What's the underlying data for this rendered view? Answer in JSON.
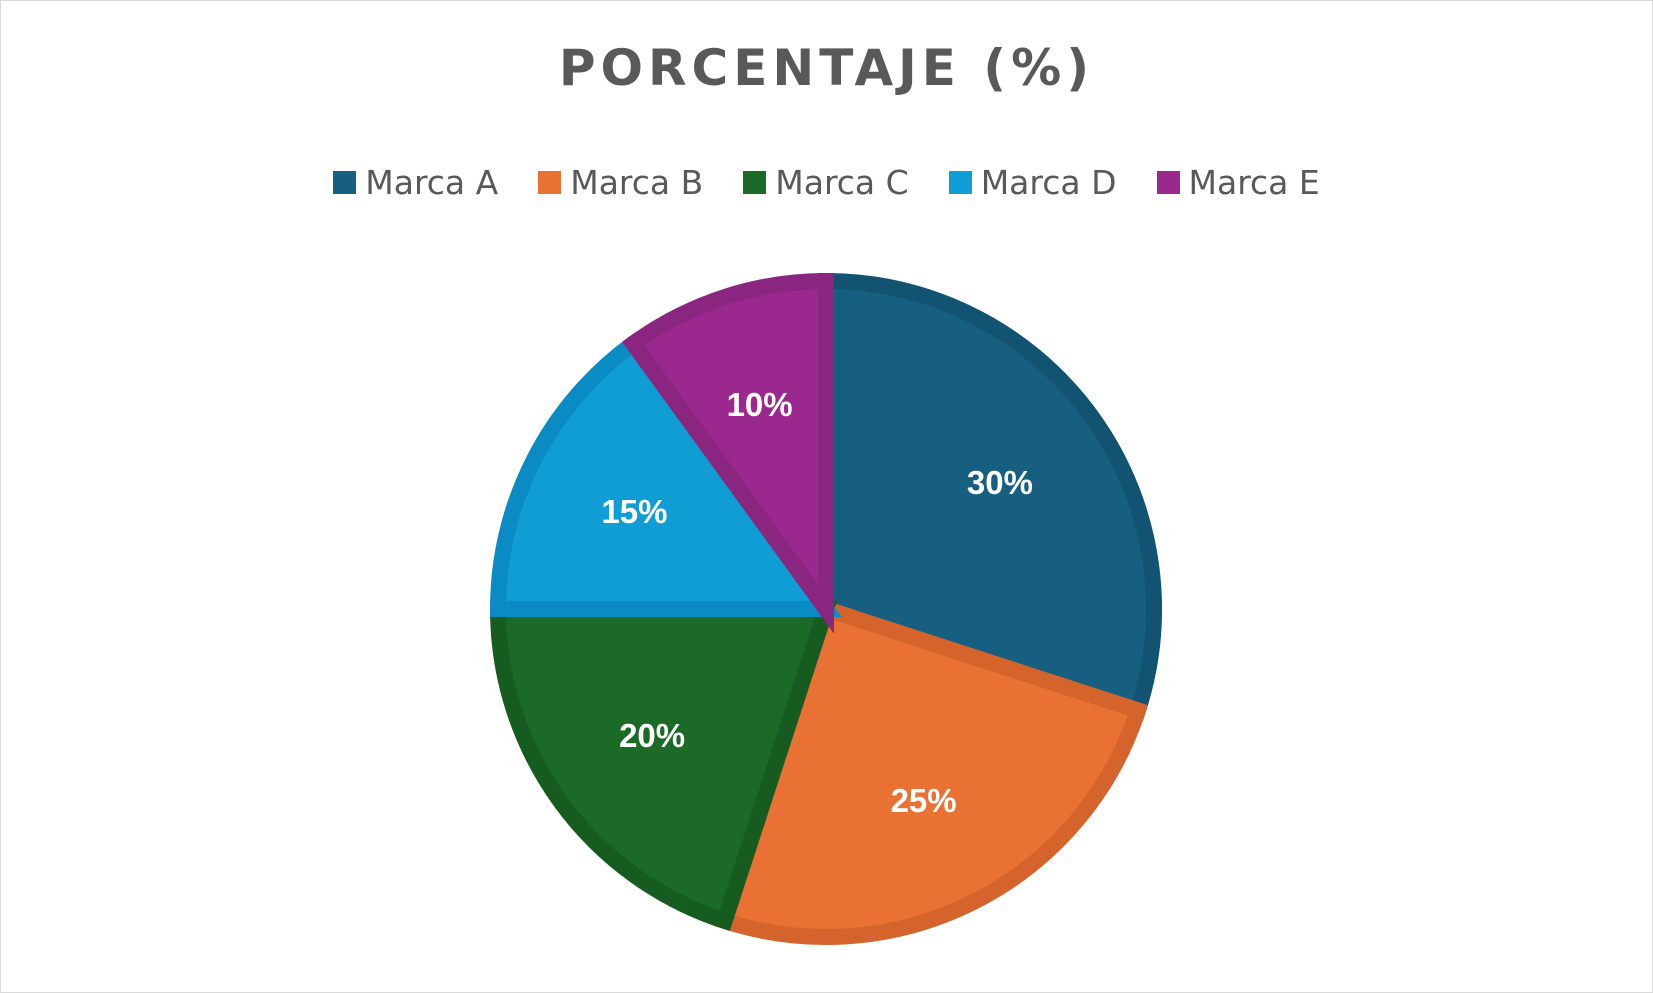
{
  "chart_data": {
    "type": "pie",
    "title": "PORCENTAJE (%)",
    "categories": [
      "Marca A",
      "Marca B",
      "Marca C",
      "Marca D",
      "Marca E"
    ],
    "values": [
      30,
      25,
      20,
      15,
      10
    ],
    "data_labels": [
      "30%",
      "25%",
      "20%",
      "15%",
      "10%"
    ],
    "colors": [
      "#175f80",
      "#e87133",
      "#1b6a27",
      "#0f9dd4",
      "#9b288f"
    ],
    "border_colors": [
      "#125371",
      "#d4642c",
      "#165c21",
      "#0b8bc4",
      "#8a2580"
    ],
    "legend_position": "top",
    "start_angle": "12 o'clock, clockwise"
  }
}
